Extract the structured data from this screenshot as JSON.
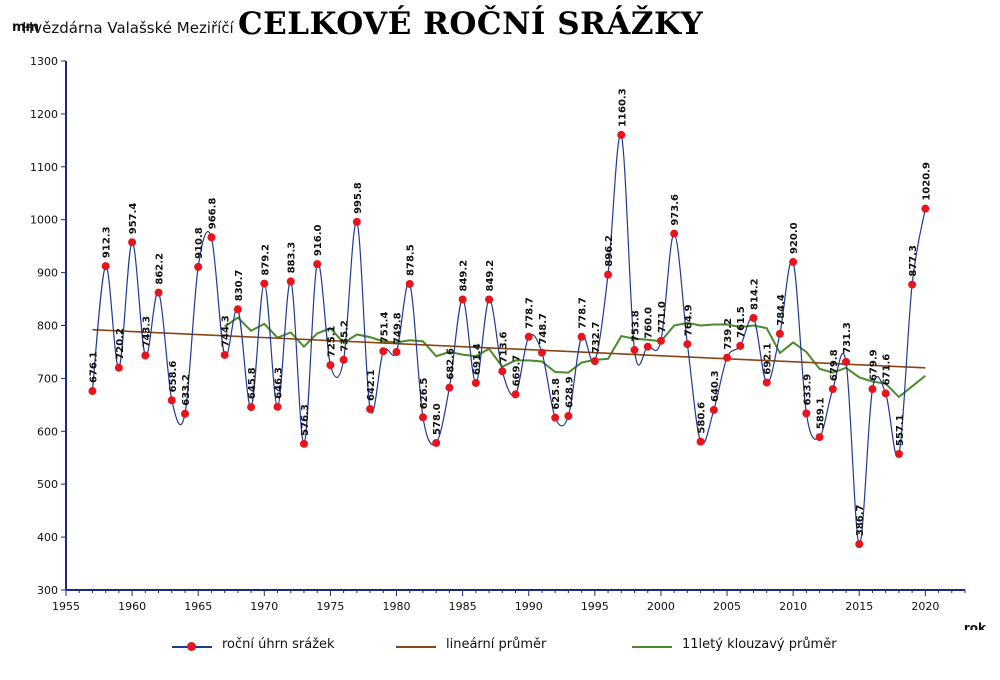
{
  "header": {
    "y_unit": "mm",
    "station": "Hvězdárna Valašské Meziříčí",
    "title": "CELKOVÉ ROČNÍ SRÁŽKY"
  },
  "colors": {
    "annual": "#1f3a93",
    "marker": "#e8141b",
    "linear": "#8b4513",
    "moving": "#4a8a2a",
    "axis": "#1a2a80",
    "grid": "#d0d0d0"
  },
  "chart_data": {
    "type": "line",
    "title": "CELKOVÉ ROČNÍ SRÁŽKY",
    "xlabel": "rok",
    "ylabel": "mm",
    "xlim": [
      1955,
      2023
    ],
    "ylim": [
      300,
      1300
    ],
    "x_ticks": [
      1955,
      1960,
      1965,
      1970,
      1975,
      1980,
      1985,
      1990,
      1995,
      2000,
      2005,
      2010,
      2015,
      2020
    ],
    "y_ticks": [
      300,
      400,
      500,
      600,
      700,
      800,
      900,
      1000,
      1100,
      1200,
      1300
    ],
    "grid": false,
    "legend_position": "bottom",
    "series": [
      {
        "name": "roční úhrn srážek",
        "x": [
          1957,
          1958,
          1959,
          1960,
          1961,
          1962,
          1963,
          1964,
          1965,
          1966,
          1967,
          1968,
          1969,
          1970,
          1971,
          1972,
          1973,
          1974,
          1975,
          1976,
          1977,
          1978,
          1979,
          1980,
          1981,
          1982,
          1983,
          1984,
          1985,
          1986,
          1987,
          1988,
          1989,
          1990,
          1991,
          1992,
          1993,
          1994,
          1995,
          1996,
          1997,
          1998,
          1999,
          2000,
          2001,
          2002,
          2003,
          2004,
          2005,
          2006,
          2007,
          2008,
          2009,
          2010,
          2011,
          2012,
          2013,
          2014,
          2015,
          2016,
          2017,
          2018,
          2019,
          2020
        ],
        "values": [
          676.1,
          912.3,
          720.2,
          957.4,
          743.3,
          862.2,
          658.6,
          633.2,
          910.8,
          966.8,
          744.3,
          830.7,
          645.8,
          879.2,
          646.3,
          883.3,
          576.3,
          916.0,
          725.1,
          735.2,
          995.8,
          642.1,
          751.4,
          749.8,
          878.5,
          626.5,
          578.0,
          682.6,
          849.2,
          691.4,
          849.2,
          713.6,
          669.7,
          778.7,
          748.7,
          625.8,
          628.9,
          778.7,
          732.7,
          896.2,
          1160.3,
          753.8,
          760.0,
          771.0,
          973.6,
          764.9,
          580.6,
          640.3,
          739.2,
          761.5,
          814.2,
          692.1,
          784.4,
          920.0,
          633.9,
          589.1,
          679.8,
          731.3,
          386.7,
          679.9,
          671.6,
          557.1,
          877.3,
          1020.9
        ],
        "labels": [
          "676.1",
          "912.3",
          "720.2",
          "957.4",
          "743.3",
          "862.2",
          "658.6",
          "633.2",
          "910.8",
          "966.8",
          "744.3",
          "830.7",
          "645.8",
          "879.2",
          "646.3",
          "883.3",
          "576.3",
          "916.0",
          "725.1",
          "735.2",
          "995.8",
          "642.1",
          "751.4",
          "749.8",
          "878.5",
          "626.5",
          "578.0",
          "682.6",
          "849.2",
          "691.4",
          "849.2",
          "713.6",
          "669.7",
          "778.7",
          "748.7",
          "625.8",
          "628.9",
          "778.7",
          "732.7",
          "896.2",
          "1160.3",
          "753.8",
          "760.0",
          "771.0",
          "973.6",
          "764.9",
          "580.6",
          "640.3",
          "739.2",
          "761.5",
          "814.2",
          "692.1",
          "784.4",
          "920.0",
          "633.9",
          "589.1",
          "679.8",
          "731.3",
          "386.7",
          "679.9",
          "671.6",
          "557.1",
          "877.3",
          "1020.9"
        ]
      },
      {
        "name": "lineární průměr",
        "x": [
          1957,
          2020
        ],
        "values": [
          792,
          720
        ]
      },
      {
        "name": "11letý klouzavý průměr",
        "x": [
          1967,
          1968,
          1969,
          1970,
          1971,
          1972,
          1973,
          1974,
          1975,
          1976,
          1977,
          1978,
          1979,
          1980,
          1981,
          1982,
          1983,
          1984,
          1985,
          1986,
          1987,
          1988,
          1989,
          1990,
          1991,
          1992,
          1993,
          1994,
          1995,
          1996,
          1997,
          1998,
          1999,
          2000,
          2001,
          2002,
          2003,
          2004,
          2005,
          2006,
          2007,
          2008,
          2009,
          2010,
          2011,
          2012,
          2013,
          2014,
          2015,
          2016,
          2017,
          2018,
          2019,
          2020
        ],
        "values": [
          798,
          815,
          790,
          803,
          777,
          787,
          760,
          785,
          795,
          767,
          783,
          778,
          770,
          768,
          772,
          770,
          742,
          750,
          745,
          742,
          756,
          722,
          734,
          734,
          732,
          712,
          711,
          730,
          735,
          737,
          780,
          775,
          773,
          770,
          800,
          805,
          800,
          802,
          802,
          797,
          800,
          795,
          748,
          768,
          750,
          718,
          711,
          720,
          702,
          694,
          690,
          665,
          685,
          705
        ]
      }
    ]
  },
  "legend": {
    "items": [
      {
        "label": "roční úhrn srážek",
        "key": "annual"
      },
      {
        "label": "lineární průměr",
        "key": "linear"
      },
      {
        "label": "11letý klouzavý průměr",
        "key": "moving"
      }
    ]
  }
}
